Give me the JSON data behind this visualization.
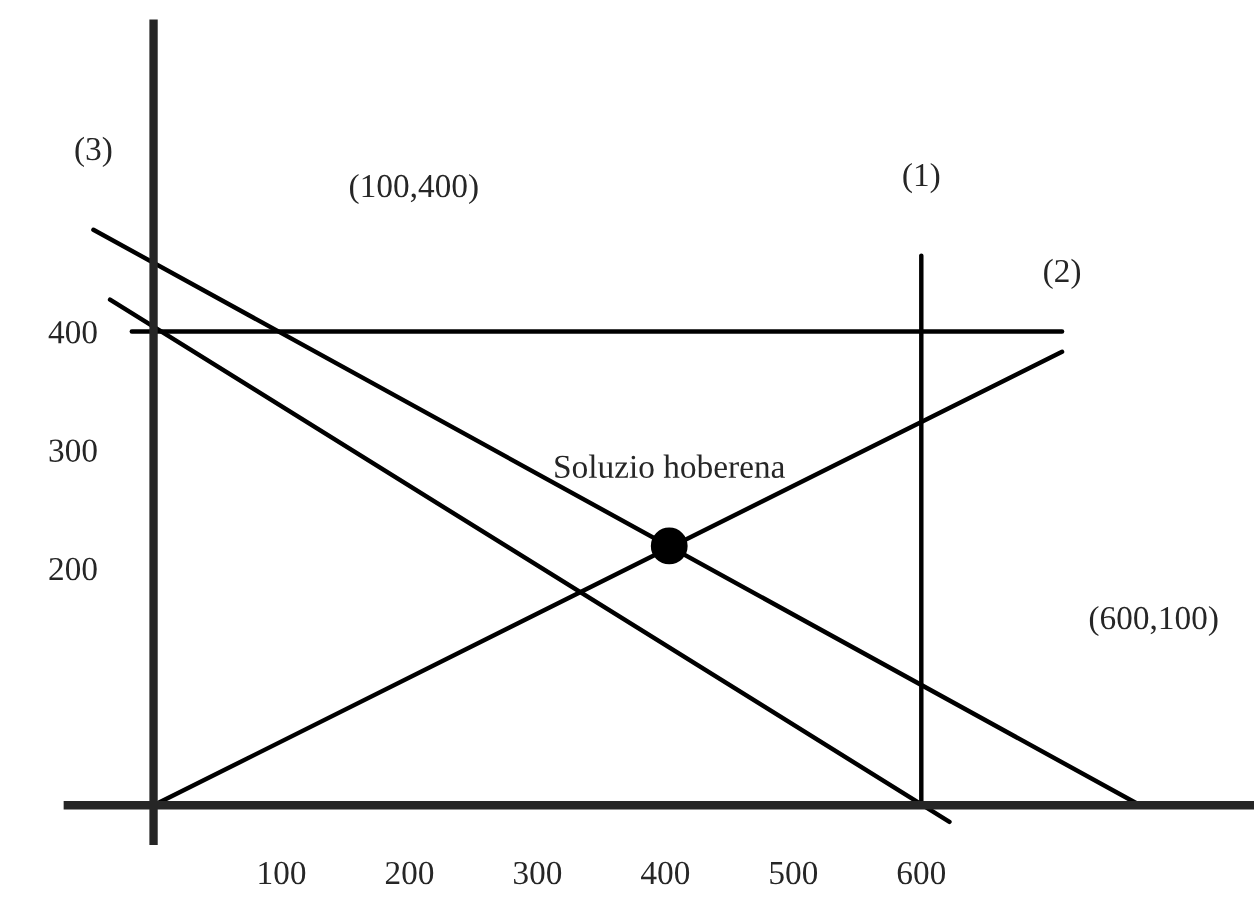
{
  "chart_data": {
    "type": "line",
    "xlim": [
      -120,
      860
    ],
    "ylim": [
      -80,
      680
    ],
    "xticks": [
      100,
      200,
      300,
      400,
      500,
      600
    ],
    "yticks": [
      200,
      300,
      400
    ],
    "grid": false,
    "legend": false,
    "marker": "none",
    "line_style": "solid",
    "series": [
      {
        "name": "(1)",
        "color": "#000000",
        "x": [
          600,
          600
        ],
        "values": [
          0,
          464
        ]
      },
      {
        "name": "(2)",
        "color": "#000000",
        "x": [
          0,
          710
        ],
        "values": [
          0,
          383
        ]
      },
      {
        "name": "(3)",
        "color": "#000000",
        "x": [
          -47,
          771
        ],
        "values": [
          486,
          0
        ]
      },
      {
        "color": "#000000",
        "x": [
          -34,
          622
        ],
        "values": [
          427,
          -14
        ]
      },
      {
        "color": "#000000",
        "x": [
          -17,
          710
        ],
        "values": [
          400,
          400
        ]
      },
      {
        "type": "scatter",
        "color": "#000000",
        "x": [
          403
        ],
        "values": [
          219
        ],
        "marker": "circle"
      }
    ],
    "annotations": [
      "(100,400)",
      "(600,100)",
      {
        "text": "Soluzio hoberena",
        "x": 403,
        "y": 219
      }
    ]
  }
}
